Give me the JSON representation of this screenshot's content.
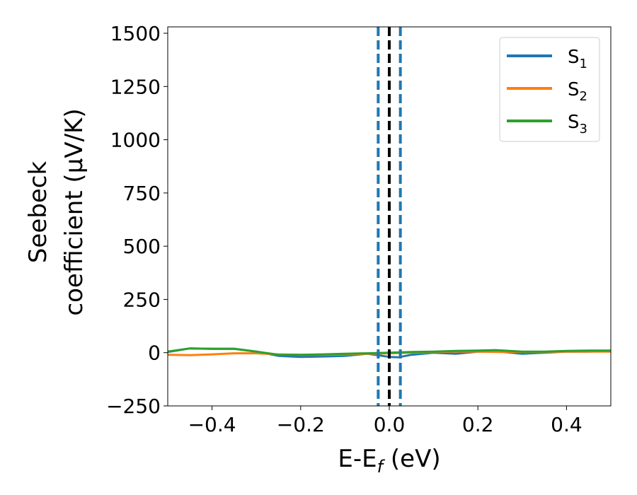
{
  "chart_data": {
    "type": "line",
    "xlabel": "E-E",
    "xlabel_sub": "f",
    "xlabel_unit": " (eV)",
    "ylabel_line1": "Seebeck",
    "ylabel_line2": "coefficient  (μV/K)",
    "xlim": [
      -0.5,
      0.5
    ],
    "ylim": [
      -250,
      1530
    ],
    "xticks": [
      -0.4,
      -0.2,
      0.0,
      0.2,
      0.4
    ],
    "xtick_labels": [
      "−0.4",
      "−0.2",
      "0.0",
      "0.2",
      "0.4"
    ],
    "yticks": [
      -250,
      0,
      250,
      500,
      750,
      1000,
      1250,
      1500
    ],
    "ytick_labels": [
      "−250",
      "0",
      "250",
      "500",
      "750",
      "1000",
      "1250",
      "1500"
    ],
    "grid": false,
    "legend_position": "top-right",
    "vlines": [
      {
        "x": 0.0,
        "color": "#000000",
        "style": "dashed"
      },
      {
        "x": -0.025,
        "color": "#1f77b4",
        "style": "dashed"
      },
      {
        "x": 0.025,
        "color": "#1f77b4",
        "style": "dashed"
      }
    ],
    "series": [
      {
        "name": "S",
        "sub": "1",
        "color": "#1f77b4",
        "x": [
          -0.5,
          -0.45,
          -0.4,
          -0.35,
          -0.3,
          -0.25,
          -0.2,
          -0.15,
          -0.1,
          -0.05,
          0.0,
          0.02,
          0.05,
          0.1,
          0.15,
          0.2,
          0.25,
          0.3,
          0.35,
          0.4,
          0.45,
          0.5
        ],
        "y": [
          3,
          20,
          18,
          18,
          5,
          -15,
          -20,
          -18,
          -15,
          -5,
          -20,
          -22,
          -10,
          0,
          -5,
          5,
          5,
          -5,
          0,
          5,
          5,
          8
        ]
      },
      {
        "name": "S",
        "sub": "2",
        "color": "#ff7f0e",
        "x": [
          -0.5,
          -0.45,
          -0.4,
          -0.35,
          -0.3,
          -0.25,
          -0.2,
          -0.15,
          -0.1,
          -0.05,
          0.0,
          0.05,
          0.1,
          0.15,
          0.2,
          0.25,
          0.3,
          0.35,
          0.4,
          0.45,
          0.5
        ],
        "y": [
          -10,
          -12,
          -8,
          -3,
          -3,
          -8,
          -10,
          -10,
          -8,
          -5,
          -3,
          0,
          3,
          5,
          5,
          3,
          3,
          3,
          5,
          5,
          5
        ]
      },
      {
        "name": "S",
        "sub": "3",
        "color": "#2ca02c",
        "x": [
          -0.5,
          -0.45,
          -0.4,
          -0.35,
          -0.3,
          -0.25,
          -0.2,
          -0.15,
          -0.1,
          -0.05,
          0.0,
          0.05,
          0.1,
          0.15,
          0.2,
          0.24,
          0.3,
          0.35,
          0.4,
          0.45,
          0.5
        ],
        "y": [
          5,
          20,
          18,
          18,
          5,
          -10,
          -10,
          -8,
          -5,
          -3,
          0,
          3,
          5,
          8,
          10,
          12,
          5,
          5,
          8,
          10,
          10
        ]
      }
    ]
  }
}
